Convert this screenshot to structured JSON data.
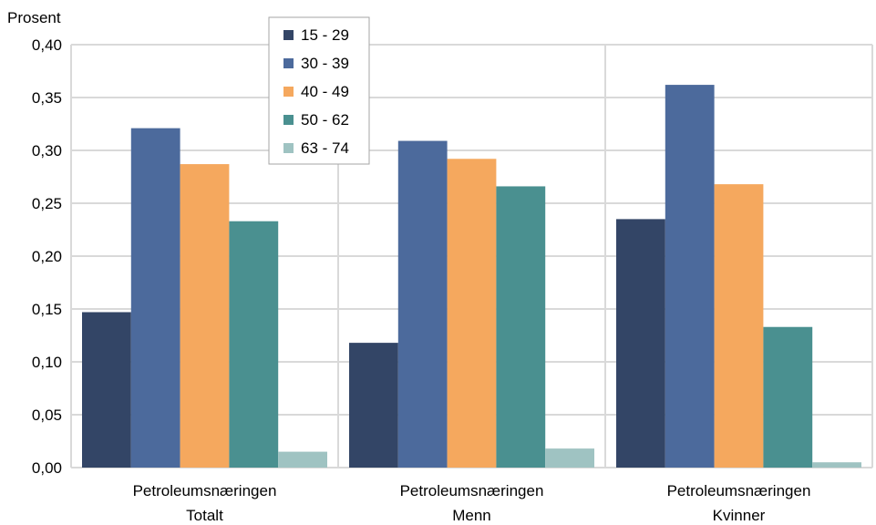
{
  "chart_data": {
    "type": "bar",
    "ylabel": "Prosent",
    "ylim": [
      0,
      0.4
    ],
    "yticks": [
      "0,00",
      "0,05",
      "0,10",
      "0,15",
      "0,20",
      "0,25",
      "0,30",
      "0,35",
      "0,40"
    ],
    "categories": [
      {
        "line1": "Petroleumsnæringen",
        "line2": "Totalt"
      },
      {
        "line1": "Petroleumsnæringen",
        "line2": "Menn"
      },
      {
        "line1": "Petroleumsnæringen",
        "line2": "Kvinner"
      }
    ],
    "series": [
      {
        "name": "15 - 29",
        "color": "#334566",
        "values": [
          0.147,
          0.118,
          0.235
        ]
      },
      {
        "name": "30 - 39",
        "color": "#4c6a9c",
        "values": [
          0.321,
          0.309,
          0.362
        ]
      },
      {
        "name": "40 - 49",
        "color": "#f5a85e",
        "values": [
          0.287,
          0.292,
          0.268
        ]
      },
      {
        "name": "50 - 62",
        "color": "#4a9090",
        "values": [
          0.233,
          0.266,
          0.133
        ]
      },
      {
        "name": "63 - 74",
        "color": "#9fc3c2",
        "values": [
          0.015,
          0.018,
          0.005
        ]
      }
    ],
    "grid": true,
    "legend_position": "top-center"
  }
}
